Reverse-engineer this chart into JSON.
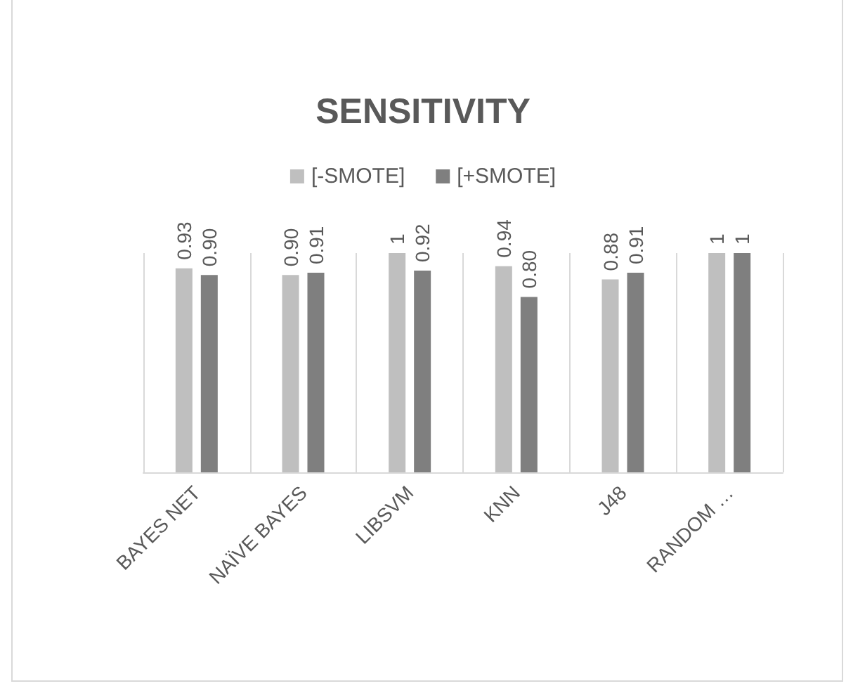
{
  "chart_data": {
    "type": "bar",
    "title": "SENSITIVITY",
    "categories": [
      "BAYES NET",
      "NAÏVE BAYES",
      "LIBSVM",
      "KNN",
      "J48",
      "RANDOM …"
    ],
    "series": [
      {
        "name": "[-SMOTE]",
        "color": "#bfbfbf",
        "values": [
          0.93,
          0.9,
          1,
          0.94,
          0.88,
          1
        ],
        "value_labels": [
          "0.93",
          "0.90",
          "1",
          "0.94",
          "0.88",
          "1"
        ]
      },
      {
        "name": "[+SMOTE]",
        "color": "#7f7f7f",
        "values": [
          0.9,
          0.91,
          0.92,
          0.8,
          0.91,
          1
        ],
        "value_labels": [
          "0.90",
          "0.91",
          "0.92",
          "0.80",
          "0.91",
          "1"
        ]
      }
    ],
    "legend": "top",
    "grid": "x"
  }
}
